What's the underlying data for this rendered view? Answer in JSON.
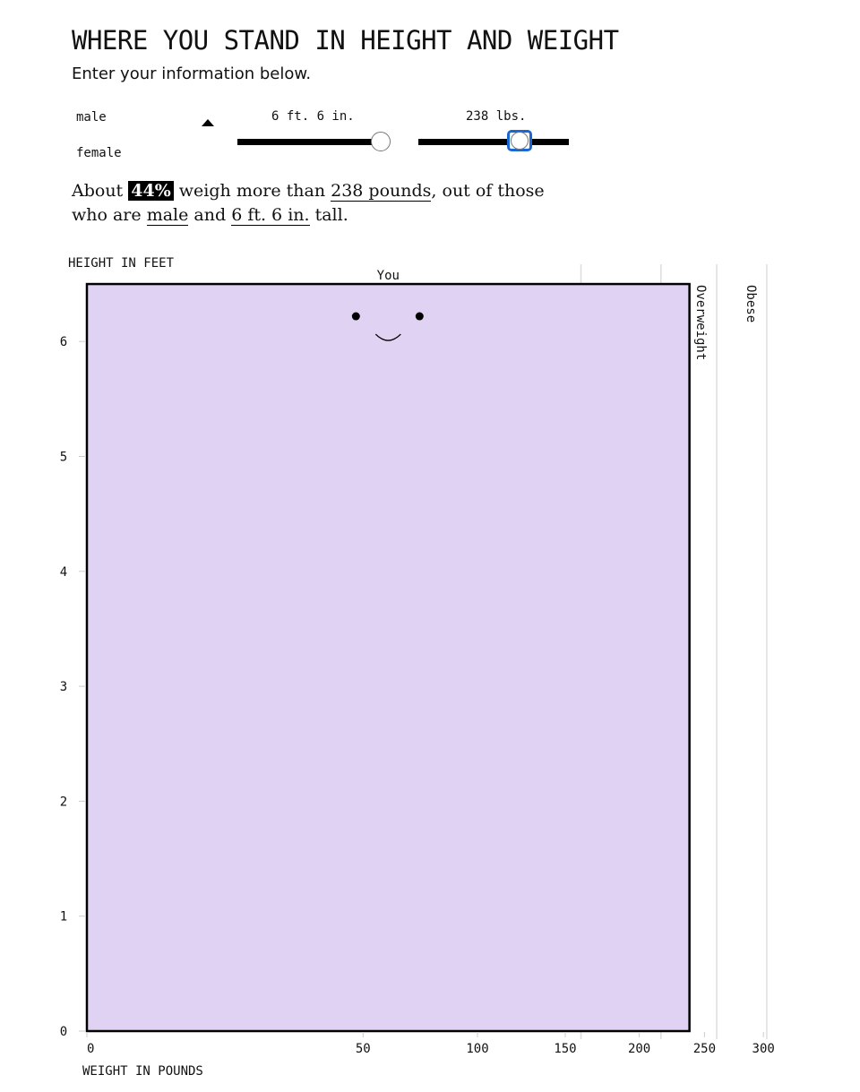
{
  "header": {
    "title": "WHERE YOU STAND IN HEIGHT AND WEIGHT",
    "subtitle": "Enter your information below."
  },
  "controls": {
    "sex_options": [
      "male",
      "female"
    ],
    "selected_sex": "male",
    "height_label": "6 ft. 6 in.",
    "weight_label": "238 lbs.",
    "height_value_in": 78,
    "weight_value_lbs": 238
  },
  "sentence": {
    "p1": "About",
    "pct": "44%",
    "p2": "weigh more than",
    "weight": "238 pounds",
    "p3": ", out of those",
    "p4": "who are",
    "sex": "male",
    "p5": "and",
    "height": "6 ft. 6 in.",
    "p6": "tall."
  },
  "chart_data": {
    "type": "area",
    "xlabel": "WEIGHT IN POUNDS",
    "ylabel": "HEIGHT IN FEET",
    "x_scale": "sqrt",
    "xlim": [
      0,
      300
    ],
    "ylim": [
      0,
      6.5
    ],
    "x_ticks": [
      0,
      50,
      100,
      150,
      200,
      250,
      300
    ],
    "y_ticks": [
      0,
      1,
      2,
      3,
      4,
      5,
      6
    ],
    "you": {
      "label": "You",
      "weight": 238,
      "height": 6.5,
      "fill": "#e0d2f3"
    },
    "thresholds": [
      {
        "weight": 160,
        "label": ""
      },
      {
        "weight": 216,
        "label": ""
      },
      {
        "weight": 260,
        "label": "Overweight"
      },
      {
        "weight": 303,
        "label": "Obese"
      }
    ]
  }
}
